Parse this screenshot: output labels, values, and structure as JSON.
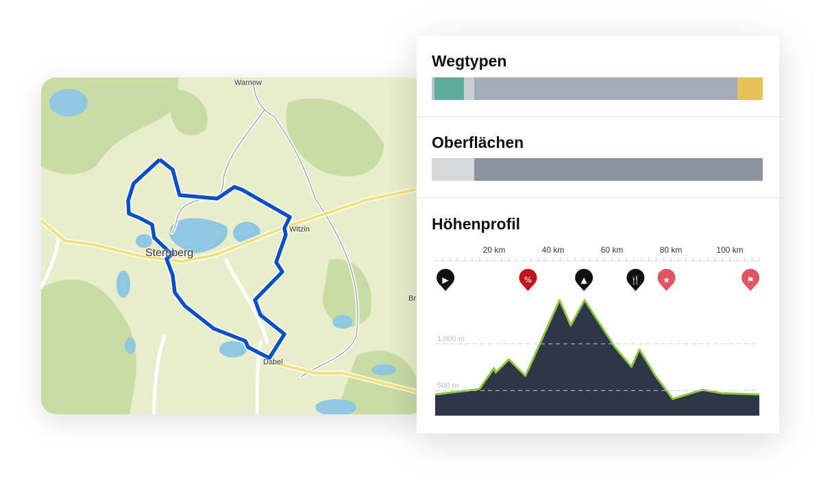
{
  "map": {
    "labels": {
      "north_town": "Warnow",
      "city": "Sternberg",
      "east_town": "Witzin",
      "south_town": "Dabel",
      "edge_town": "Br"
    },
    "route_color": "#0a4fc4"
  },
  "panel": {
    "wegtypen": {
      "title": "Wegtypen",
      "segments": [
        {
          "share": 0.8,
          "color": "#b8c7c4"
        },
        {
          "share": 8.9,
          "color": "#5fab9c"
        },
        {
          "share": 3.1,
          "color": "#c9ced4"
        },
        {
          "share": 79.5,
          "color": "#a3abb6"
        },
        {
          "share": 7.7,
          "color": "#e6c35a"
        }
      ]
    },
    "oberflaechen": {
      "title": "Oberflächen",
      "segments": [
        {
          "share": 12.8,
          "color": "#d6d8da"
        },
        {
          "share": 87.2,
          "color": "#8a939c"
        }
      ]
    },
    "hoehenprofil": {
      "title": "Höhenprofil"
    }
  },
  "chart_data": {
    "type": "area",
    "title": "Höhenprofil",
    "xlabel": "",
    "ylabel": "",
    "x_unit": "km",
    "y_unit": "m",
    "xlim": [
      0,
      110
    ],
    "ylim": [
      232,
      1550
    ],
    "x_ticks": [
      {
        "value": 20,
        "label": "20 km"
      },
      {
        "value": 40,
        "label": "40 km"
      },
      {
        "value": 60,
        "label": "60 km"
      },
      {
        "value": 80,
        "label": "80 km"
      },
      {
        "value": 100,
        "label": "100 km"
      }
    ],
    "y_gridlines": [
      {
        "value": 500,
        "label": "500 m"
      },
      {
        "value": 1000,
        "label": "1.000 m"
      }
    ],
    "grid": "dashed horizontal",
    "fill_color": "#2d3748",
    "line_color": "#8cc63f",
    "points": [
      [
        0,
        458
      ],
      [
        15,
        516
      ],
      [
        20,
        740
      ],
      [
        20.5,
        692
      ],
      [
        25,
        833
      ],
      [
        30.6,
        657
      ],
      [
        33,
        824
      ],
      [
        42.2,
        1467
      ],
      [
        46,
        1197
      ],
      [
        50.7,
        1467
      ],
      [
        60.8,
        974
      ],
      [
        66.6,
        754
      ],
      [
        69.3,
        939
      ],
      [
        74.8,
        657
      ],
      [
        80.6,
        411
      ],
      [
        90.7,
        507
      ],
      [
        97.2,
        472
      ],
      [
        110,
        458
      ]
    ],
    "markers": [
      {
        "km": 3.5,
        "icon": "start-icon",
        "color": "#111111"
      },
      {
        "km": 31.5,
        "icon": "percent-gradient-icon",
        "color": "#c0141c"
      },
      {
        "km": 50.5,
        "icon": "campsite-icon",
        "color": "#111111"
      },
      {
        "km": 68,
        "icon": "restaurant-icon",
        "color": "#111111"
      },
      {
        "km": 78.5,
        "icon": "star-icon",
        "color": "#e05561"
      },
      {
        "km": 107,
        "icon": "finish-flag-icon",
        "color": "#e05561"
      }
    ]
  }
}
